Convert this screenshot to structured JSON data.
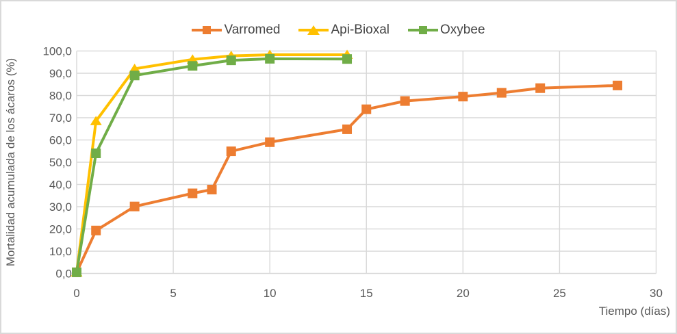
{
  "chart_data": {
    "type": "line",
    "title": "",
    "xlabel": "Tiempo (días)",
    "ylabel": "Mortalidad acumulada de los ácaros (%)",
    "xlim": [
      0,
      30
    ],
    "ylim": [
      0,
      100
    ],
    "grid": true,
    "legend_position": "top",
    "x_tick_labels": [
      "0",
      "5",
      "10",
      "15",
      "20",
      "25",
      "30"
    ],
    "y_tick_labels": [
      "0,0",
      "10,0",
      "20,0",
      "30,0",
      "40,0",
      "50,0",
      "60,0",
      "70,0",
      "80,0",
      "90,0",
      "100,0"
    ],
    "series": [
      {
        "name": "Varromed",
        "color": "#ED7D31",
        "marker": "square",
        "x": [
          0,
          1,
          3,
          6,
          7,
          8,
          10,
          14,
          15,
          17,
          20,
          22,
          24,
          28
        ],
        "y": [
          0.5,
          19.3,
          30.1,
          36.0,
          37.7,
          54.9,
          59.0,
          64.8,
          73.8,
          77.5,
          79.5,
          81.2,
          83.3,
          84.5
        ]
      },
      {
        "name": "Api-Bioxal",
        "color": "#FFC000",
        "marker": "triangle",
        "x": [
          0,
          1,
          3,
          6,
          8,
          10,
          14
        ],
        "y": [
          0.5,
          68.5,
          92.0,
          96.2,
          97.8,
          98.3,
          98.3
        ]
      },
      {
        "name": "Oxybee",
        "color": "#70AD47",
        "marker": "square",
        "x": [
          0,
          1,
          3,
          6,
          8,
          10,
          14
        ],
        "y": [
          0.5,
          54.0,
          89.0,
          93.3,
          95.8,
          96.5,
          96.4
        ]
      }
    ],
    "colors": {
      "gridline": "#D9D9D9",
      "axis_text": "#595959",
      "frame_border": "#D9D9D9"
    }
  }
}
